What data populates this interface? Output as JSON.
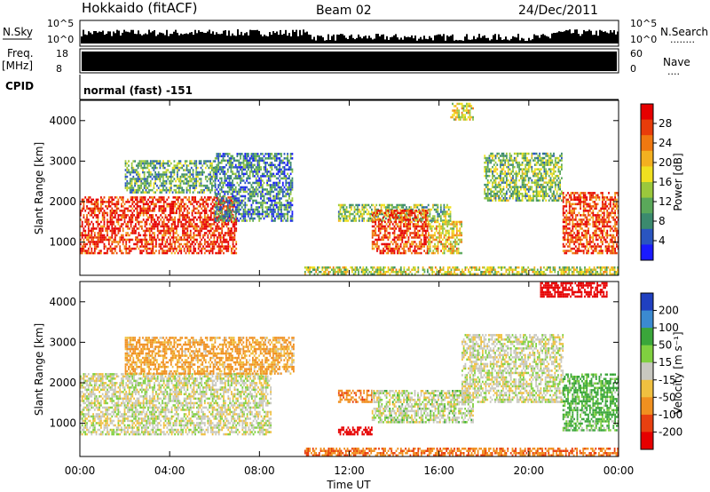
{
  "header": {
    "station": "Hokkaido (fitACF)",
    "beam": "Beam 02",
    "date": "24/Dec/2011"
  },
  "side_labels": {
    "nsky": "N.Sky",
    "nsearch": "N.Search",
    "freq": "Freq.",
    "freq_unit": "[MHz]",
    "nave": "Nave",
    "cpid": "CPID",
    "dots_search": "........",
    "dots_nave": "...."
  },
  "strip_ticks": {
    "noise_left": [
      "10^5",
      "10^0"
    ],
    "noise_right": [
      "10^5",
      "10^0"
    ],
    "freq_left": [
      "18",
      "8"
    ],
    "nave_right": [
      "60",
      "0"
    ]
  },
  "cpid_text": "normal (fast) -151",
  "colors": {
    "power": [
      "#1a1aff",
      "#2a55c0",
      "#3b8a6e",
      "#5aa85a",
      "#9bc83c",
      "#f0e020",
      "#f3b020",
      "#f07810",
      "#e83c0a",
      "#e60000"
    ],
    "velocity": [
      "#2040c0",
      "#3b8ad0",
      "#3aa63a",
      "#80d040",
      "#c8c8c0",
      "#f0c040",
      "#f09020",
      "#e84010",
      "#e60000"
    ]
  },
  "chart_data": [
    {
      "type": "heatmap",
      "panel": "power",
      "xlabel": "",
      "ylabel": "Slant Range [km]",
      "x_ticks": [
        "00:00",
        "04:00",
        "08:00",
        "12:00",
        "16:00",
        "20:00",
        "00:00"
      ],
      "y_ticks": [
        "1000",
        "2000",
        "3000",
        "4000"
      ],
      "xlim": [
        0,
        24
      ],
      "ylim": [
        180,
        4500
      ],
      "colorbar": {
        "label": "Power [dB]",
        "ticks": [
          "28",
          "24",
          "20",
          "16",
          "12",
          "8",
          "4"
        ],
        "range": [
          0,
          30
        ]
      },
      "regions": [
        {
          "t": [
            0.0,
            7.0
          ],
          "r": [
            700,
            2100
          ],
          "level": 0.9
        },
        {
          "t": [
            2.0,
            6.0
          ],
          "r": [
            2200,
            3000
          ],
          "level": 0.35
        },
        {
          "t": [
            6.0,
            9.5
          ],
          "r": [
            1500,
            3200
          ],
          "level": 0.25
        },
        {
          "t": [
            11.5,
            16.5
          ],
          "r": [
            1500,
            1900
          ],
          "level": 0.4
        },
        {
          "t": [
            13.0,
            15.5
          ],
          "r": [
            700,
            1800
          ],
          "level": 0.85
        },
        {
          "t": [
            15.5,
            17.0
          ],
          "r": [
            700,
            1500
          ],
          "level": 0.6
        },
        {
          "t": [
            10.0,
            24.0
          ],
          "r": [
            180,
            400
          ],
          "level": 0.5
        },
        {
          "t": [
            18.0,
            21.5
          ],
          "r": [
            2000,
            3200
          ],
          "level": 0.4
        },
        {
          "t": [
            21.5,
            24.0
          ],
          "r": [
            700,
            2200
          ],
          "level": 0.85
        },
        {
          "t": [
            16.5,
            17.5
          ],
          "r": [
            4000,
            4400
          ],
          "level": 0.55
        }
      ]
    },
    {
      "type": "heatmap",
      "panel": "velocity",
      "xlabel": "Time UT",
      "ylabel": "Slant Range [km]",
      "x_ticks": [
        "00:00",
        "04:00",
        "08:00",
        "12:00",
        "16:00",
        "20:00",
        "00:00"
      ],
      "y_ticks": [
        "1000",
        "2000",
        "3000",
        "4000"
      ],
      "xlim": [
        0,
        24
      ],
      "ylim": [
        180,
        4500
      ],
      "colorbar": {
        "label": "Velocity [m s⁻¹]",
        "ticks": [
          "200",
          "100",
          "50",
          "15",
          "-15",
          "-50",
          "-100",
          "-200"
        ],
        "range": [
          -250,
          250
        ]
      },
      "regions": [
        {
          "t": [
            0.0,
            8.5
          ],
          "r": [
            700,
            2200
          ],
          "v": 0
        },
        {
          "t": [
            2.0,
            9.5
          ],
          "r": [
            2200,
            3100
          ],
          "v": -40
        },
        {
          "t": [
            11.5,
            13.0
          ],
          "r": [
            1500,
            1800
          ],
          "v": -60
        },
        {
          "t": [
            11.5,
            13.0
          ],
          "r": [
            700,
            900
          ],
          "v": -180
        },
        {
          "t": [
            13.0,
            17.5
          ],
          "r": [
            1000,
            1800
          ],
          "v": 5
        },
        {
          "t": [
            10.0,
            24.0
          ],
          "r": [
            180,
            400
          ],
          "v": -70
        },
        {
          "t": [
            17.0,
            21.5
          ],
          "r": [
            1500,
            3200
          ],
          "v": 0
        },
        {
          "t": [
            21.5,
            24.0
          ],
          "r": [
            800,
            2200
          ],
          "v": 40
        },
        {
          "t": [
            20.5,
            23.5
          ],
          "r": [
            4100,
            4450
          ],
          "v": -200
        }
      ]
    }
  ]
}
